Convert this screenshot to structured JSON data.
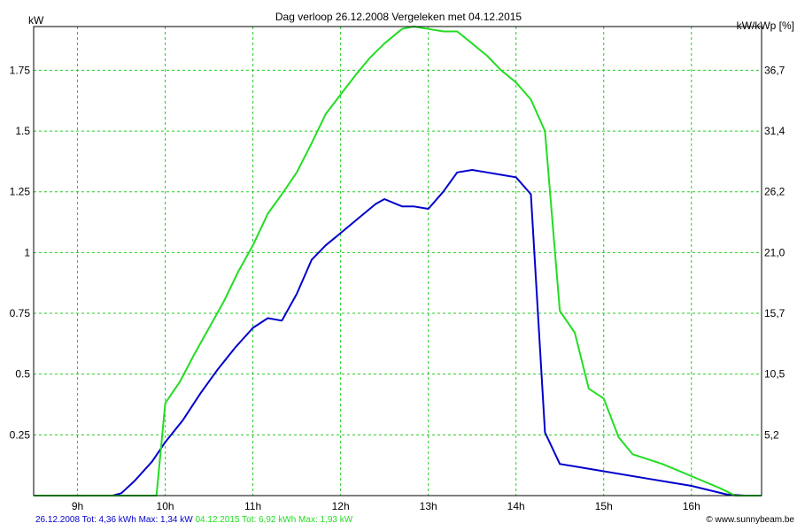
{
  "chart_data": {
    "type": "line",
    "title": "Dag  verloop 26.12.2008   Vergeleken met 04.12.2015",
    "ylabel_left": "kW",
    "ylabel_right": "kW/kWp [%]",
    "xlim": [
      8.5,
      16.8
    ],
    "ylim": [
      0,
      1.93
    ],
    "x_ticks": [
      9,
      10,
      11,
      12,
      13,
      14,
      15,
      16
    ],
    "x_tick_labels": [
      "9h",
      "10h",
      "11h",
      "12h",
      "13h",
      "14h",
      "15h",
      "16h"
    ],
    "y_ticks": [
      0.25,
      0.5,
      0.75,
      1,
      1.25,
      1.5,
      1.75
    ],
    "y_tick_labels": [
      "0.25",
      "0.5",
      "0.75",
      "1",
      "1.25",
      "1.5",
      "1.75"
    ],
    "y2_tick_labels": [
      "5,2",
      "10,5",
      "15,7",
      "21,0",
      "26,2",
      "31,4",
      "36,7"
    ],
    "grid": true,
    "series": [
      {
        "name": "26.12.2008",
        "color": "#0000cc",
        "points": [
          [
            8.5,
            0
          ],
          [
            9.4,
            0
          ],
          [
            9.5,
            0.01
          ],
          [
            9.65,
            0.06
          ],
          [
            9.85,
            0.14
          ],
          [
            10.0,
            0.22
          ],
          [
            10.2,
            0.31
          ],
          [
            10.4,
            0.42
          ],
          [
            10.6,
            0.52
          ],
          [
            10.8,
            0.61
          ],
          [
            11.0,
            0.69
          ],
          [
            11.17,
            0.73
          ],
          [
            11.33,
            0.72
          ],
          [
            11.5,
            0.83
          ],
          [
            11.67,
            0.97
          ],
          [
            11.83,
            1.03
          ],
          [
            12.0,
            1.08
          ],
          [
            12.2,
            1.14
          ],
          [
            12.4,
            1.2
          ],
          [
            12.5,
            1.22
          ],
          [
            12.7,
            1.19
          ],
          [
            12.83,
            1.19
          ],
          [
            13.0,
            1.18
          ],
          [
            13.17,
            1.25
          ],
          [
            13.33,
            1.33
          ],
          [
            13.5,
            1.34
          ],
          [
            13.67,
            1.33
          ],
          [
            13.83,
            1.32
          ],
          [
            14.0,
            1.31
          ],
          [
            14.17,
            1.24
          ],
          [
            14.33,
            0.26
          ],
          [
            14.5,
            0.13
          ],
          [
            14.67,
            0.12
          ],
          [
            15.0,
            0.1
          ],
          [
            15.5,
            0.07
          ],
          [
            16.0,
            0.04
          ],
          [
            16.4,
            0.005
          ],
          [
            16.6,
            0
          ],
          [
            16.8,
            0
          ]
        ]
      },
      {
        "name": "04.12.2015",
        "color": "#22dd22",
        "points": [
          [
            8.5,
            0
          ],
          [
            9.9,
            0
          ],
          [
            10.0,
            0.38
          ],
          [
            10.17,
            0.47
          ],
          [
            10.33,
            0.58
          ],
          [
            10.5,
            0.69
          ],
          [
            10.67,
            0.8
          ],
          [
            10.83,
            0.92
          ],
          [
            11.0,
            1.03
          ],
          [
            11.17,
            1.16
          ],
          [
            11.33,
            1.24
          ],
          [
            11.5,
            1.33
          ],
          [
            11.67,
            1.45
          ],
          [
            11.83,
            1.57
          ],
          [
            12.0,
            1.65
          ],
          [
            12.17,
            1.73
          ],
          [
            12.33,
            1.8
          ],
          [
            12.5,
            1.86
          ],
          [
            12.7,
            1.92
          ],
          [
            12.83,
            1.93
          ],
          [
            13.0,
            1.92
          ],
          [
            13.17,
            1.91
          ],
          [
            13.33,
            1.91
          ],
          [
            13.5,
            1.86
          ],
          [
            13.67,
            1.81
          ],
          [
            13.83,
            1.75
          ],
          [
            14.0,
            1.7
          ],
          [
            14.17,
            1.63
          ],
          [
            14.33,
            1.5
          ],
          [
            14.5,
            0.76
          ],
          [
            14.67,
            0.67
          ],
          [
            14.83,
            0.44
          ],
          [
            15.0,
            0.4
          ],
          [
            15.17,
            0.24
          ],
          [
            15.33,
            0.17
          ],
          [
            15.67,
            0.13
          ],
          [
            16.0,
            0.08
          ],
          [
            16.33,
            0.03
          ],
          [
            16.5,
            0
          ],
          [
            16.8,
            0
          ]
        ]
      }
    ]
  },
  "footer": {
    "series1_text": "26.12.2008 Tot: 4,36 kWh Max: 1,34 kW",
    "series1_color": "#0000cc",
    "series2_text": "04.12.2015 Tot: 6,92 kWh Max: 1,93 kW",
    "series2_color": "#22dd22",
    "credit": "© www.sunnybeam.be"
  }
}
